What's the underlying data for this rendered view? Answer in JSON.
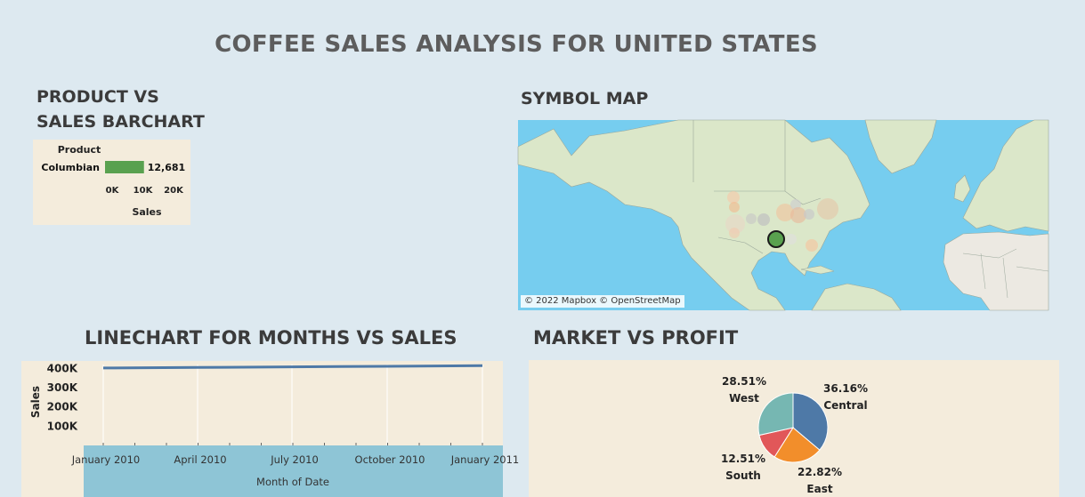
{
  "dashboard": {
    "title": "COFFEE SALES ANALYSIS FOR UNITED STATES"
  },
  "sections": {
    "bar_title_line1": "PRODUCT VS",
    "bar_title_line2": "SALES BARCHART",
    "map_title": "SYMBOL MAP",
    "line_title": "LINECHART FOR MONTHS VS SALES",
    "pie_title": "MARKET VS PROFIT"
  },
  "map": {
    "attribution": "© 2022 Mapbox © OpenStreetMap",
    "water_color": "#76cdef",
    "land_color": "#dbe7c9"
  },
  "chart_data": [
    {
      "type": "bar",
      "orientation": "horizontal",
      "categories": [
        "Columbian"
      ],
      "values": [
        12681
      ],
      "data_labels": [
        "12,681"
      ],
      "ylabel": "Product",
      "xlabel": "Sales",
      "x_ticks": [
        "0K",
        "10K",
        "20K"
      ],
      "xlim": [
        0,
        20000
      ],
      "color": "#59a14f"
    },
    {
      "type": "line",
      "x": [
        "January 2010",
        "April 2010",
        "July 2010",
        "October 2010",
        "January 2011"
      ],
      "series": [
        {
          "values": [
            402000,
            405000,
            408000,
            411000,
            414000
          ]
        }
      ],
      "xlabel": "Month of Date",
      "ylabel": "Sales",
      "y_ticks": [
        "100K",
        "200K",
        "300K",
        "400K"
      ],
      "ylim": [
        0,
        420000
      ],
      "color": "#4e79a7"
    },
    {
      "type": "pie",
      "categories": [
        "Central",
        "East",
        "South",
        "West"
      ],
      "values": [
        36.16,
        22.82,
        12.51,
        28.51
      ],
      "labels": [
        "36.16%",
        "22.82%",
        "12.51%",
        "28.51%"
      ],
      "colors": [
        "#4e79a7",
        "#f28e2b",
        "#e15759",
        "#76b7b2"
      ]
    }
  ]
}
